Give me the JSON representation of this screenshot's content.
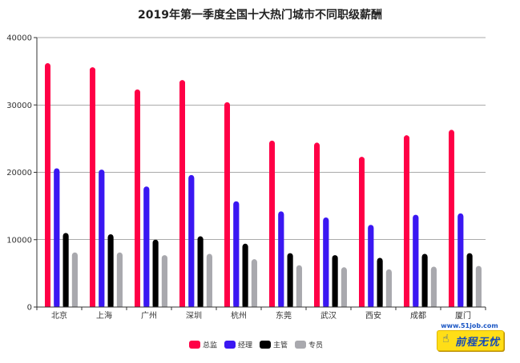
{
  "chart_data": {
    "type": "bar",
    "title": "2019年第一季度全国十大热门城市不同职级薪酬",
    "categories": [
      "北京",
      "上海",
      "广州",
      "深圳",
      "杭州",
      "东莞",
      "武汉",
      "西安",
      "成都",
      "厦门"
    ],
    "series": [
      {
        "name": "总监",
        "color": "#ff0046",
        "values": [
          36200,
          35600,
          32300,
          33700,
          30400,
          24700,
          24400,
          22300,
          25500,
          26300
        ]
      },
      {
        "name": "经理",
        "color": "#3a17f2",
        "values": [
          20600,
          20400,
          17900,
          19600,
          15700,
          14200,
          13300,
          12200,
          13700,
          13900
        ]
      },
      {
        "name": "主管",
        "color": "#000000",
        "values": [
          11000,
          10800,
          10000,
          10500,
          9400,
          8000,
          7700,
          7300,
          7900,
          8000
        ]
      },
      {
        "name": "专员",
        "color": "#a9a9ae",
        "values": [
          8100,
          8100,
          7700,
          7900,
          7100,
          6200,
          5900,
          5600,
          6000,
          6100
        ]
      }
    ],
    "yticks": [
      "0",
      "10000",
      "20000",
      "30000",
      "40000"
    ],
    "ylim": [
      0,
      40000
    ],
    "grid": true,
    "legend_position": "bottom"
  },
  "brand": {
    "url": "www.51job.com",
    "text": "前程无忧"
  }
}
